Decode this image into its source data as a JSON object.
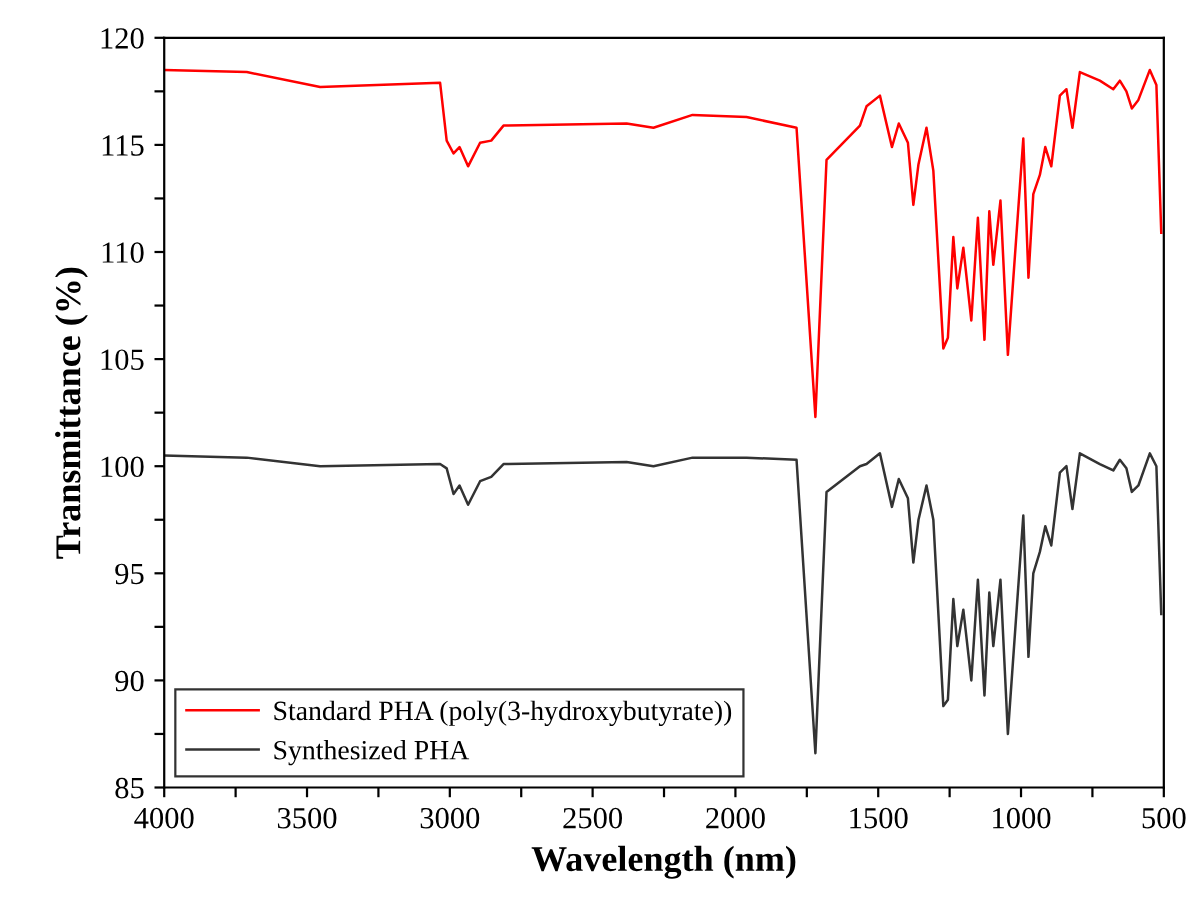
{
  "chart_data": {
    "type": "line",
    "xlabel": "Wavelength (nm)",
    "ylabel": "Transmittance (%)",
    "xlim": [
      4000,
      500
    ],
    "ylim": [
      85,
      120
    ],
    "xticks": [
      4000,
      {
        "value": 3750,
        "label": null
      },
      3500,
      {
        "value": 3250,
        "label": null
      },
      3000,
      {
        "value": 2750,
        "label": null
      },
      2500,
      {
        "value": 2250,
        "label": null
      },
      2000,
      {
        "value": 1750,
        "label": null
      },
      1500,
      {
        "value": 1250,
        "label": null
      },
      1000,
      {
        "value": 750,
        "label": null
      },
      500
    ],
    "yticks": [
      85,
      {
        "value": 87.5,
        "label": null
      },
      90,
      {
        "value": 92.5,
        "label": null
      },
      95,
      {
        "value": 97.5,
        "label": null
      },
      100,
      {
        "value": 102.5,
        "label": null
      },
      105,
      {
        "value": 107.5,
        "label": null
      },
      110,
      {
        "value": 112.5,
        "label": null
      },
      115,
      {
        "value": 117.5,
        "label": null
      },
      120
    ],
    "grid": false,
    "legend": "bottom left",
    "marker": "none",
    "line_style": "solid",
    "series": [
      {
        "name": "Standard PHA (poly(3-hydroxybutyrate))",
        "color": "#ff0000",
        "x": [
          4000,
          3711,
          3454,
          3034,
          3011,
          2987,
          2966,
          2936,
          2894,
          2855,
          2812,
          2381,
          2287,
          2150,
          1961,
          1786,
          1720,
          1681,
          1564,
          1541,
          1494,
          1452,
          1428,
          1396,
          1377,
          1359,
          1331,
          1307,
          1272,
          1256,
          1237,
          1223,
          1202,
          1174,
          1151,
          1128,
          1111,
          1097,
          1072,
          1046,
          992,
          974,
          957,
          934,
          915,
          894,
          864,
          841,
          820,
          794,
          724,
          677,
          654,
          631,
          612,
          589,
          549,
          526,
          509
        ],
        "values": [
          118.5,
          118.4,
          117.7,
          117.9,
          115.2,
          114.6,
          114.9,
          114.0,
          115.1,
          115.2,
          115.9,
          116.0,
          115.8,
          116.4,
          116.3,
          115.8,
          102.3,
          114.3,
          115.9,
          116.8,
          117.3,
          114.9,
          116.0,
          115.1,
          112.2,
          114.1,
          115.8,
          113.8,
          105.5,
          106.0,
          110.7,
          108.3,
          110.2,
          106.8,
          111.6,
          105.9,
          111.9,
          109.4,
          112.4,
          105.2,
          115.3,
          108.8,
          112.7,
          113.6,
          114.9,
          114.0,
          117.3,
          117.6,
          115.8,
          118.4,
          118.0,
          117.6,
          118.0,
          117.5,
          116.7,
          117.1,
          118.5,
          117.8,
          110.9
        ]
      },
      {
        "name": "Synthesized PHA",
        "color": "#333333",
        "x": [
          4000,
          3711,
          3454,
          3034,
          3011,
          2987,
          2966,
          2936,
          2894,
          2855,
          2812,
          2381,
          2287,
          2150,
          1961,
          1786,
          1720,
          1681,
          1564,
          1541,
          1494,
          1452,
          1428,
          1396,
          1377,
          1359,
          1331,
          1307,
          1272,
          1256,
          1237,
          1223,
          1202,
          1174,
          1151,
          1128,
          1111,
          1097,
          1072,
          1046,
          992,
          974,
          957,
          934,
          915,
          894,
          864,
          841,
          820,
          794,
          724,
          677,
          654,
          631,
          612,
          589,
          549,
          526,
          509
        ],
        "values": [
          100.5,
          100.4,
          100.0,
          100.1,
          99.9,
          98.7,
          99.1,
          98.2,
          99.3,
          99.5,
          100.1,
          100.2,
          100.0,
          100.4,
          100.4,
          100.3,
          86.6,
          98.8,
          100.0,
          100.1,
          100.6,
          98.1,
          99.4,
          98.5,
          95.5,
          97.5,
          99.1,
          97.5,
          88.8,
          89.1,
          93.8,
          91.6,
          93.3,
          90.0,
          94.7,
          89.3,
          94.1,
          91.6,
          94.7,
          87.5,
          97.7,
          91.1,
          95.0,
          96.0,
          97.2,
          96.3,
          99.7,
          100.0,
          98.0,
          100.6,
          100.1,
          99.8,
          100.3,
          99.9,
          98.8,
          99.1,
          100.6,
          100.0,
          93.1
        ]
      }
    ]
  }
}
